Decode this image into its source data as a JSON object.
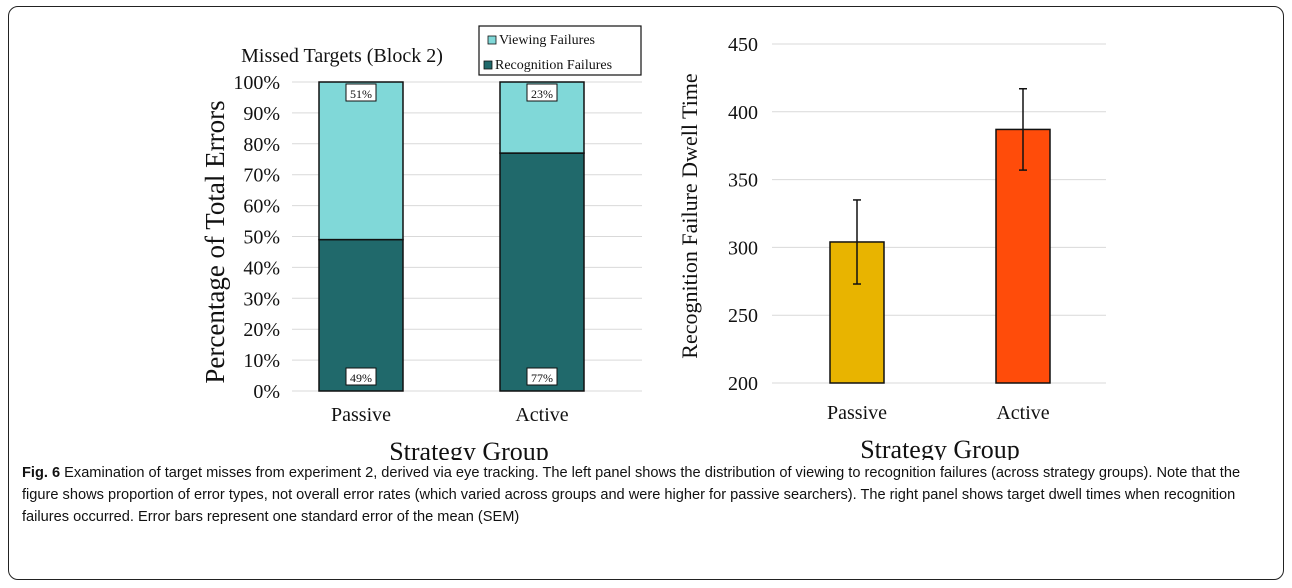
{
  "left_chart": {
    "type": "bar",
    "stacked": true,
    "title": "Missed Targets (Block 2)",
    "ylabel": "Percentage of Total Errors",
    "xlabel": "Strategy Group",
    "categories": [
      "Passive",
      "Active"
    ],
    "yticks": [
      "0%",
      "10%",
      "20%",
      "30%",
      "40%",
      "50%",
      "60%",
      "70%",
      "80%",
      "90%",
      "100%"
    ],
    "ylim": [
      0,
      100
    ],
    "legend_position": "top",
    "series": [
      {
        "name": "Recognition Failures",
        "values": [
          49,
          77
        ],
        "labels": [
          "49%",
          "77%"
        ],
        "color": "#20696b"
      },
      {
        "name": "Viewing Failures",
        "values": [
          51,
          23
        ],
        "labels": [
          "51%",
          "23%"
        ],
        "color": "#80d8d8"
      }
    ],
    "grid": true
  },
  "right_chart": {
    "type": "bar",
    "ylabel": "Recognition Failure Dwell Time",
    "xlabel": "Strategy Group",
    "categories": [
      "Passive",
      "Active"
    ],
    "values": [
      304,
      387
    ],
    "errors": [
      31,
      30
    ],
    "colors": [
      "#e8b400",
      "#ff4c0a"
    ],
    "ylim": [
      200,
      450
    ],
    "yticks": [
      "200",
      "250",
      "300",
      "350",
      "400",
      "450"
    ],
    "grid": true
  },
  "caption": {
    "label": "Fig. 6",
    "text": " Examination of target misses from experiment 2, derived via eye tracking. The left panel shows the distribution of viewing to recognition failures (across strategy groups). Note that the figure shows proportion of error types, not overall error rates (which varied across groups and were higher for passive searchers). The right panel shows target dwell times when recognition failures occurred. Error bars represent one standard error of the mean (SEM)"
  }
}
